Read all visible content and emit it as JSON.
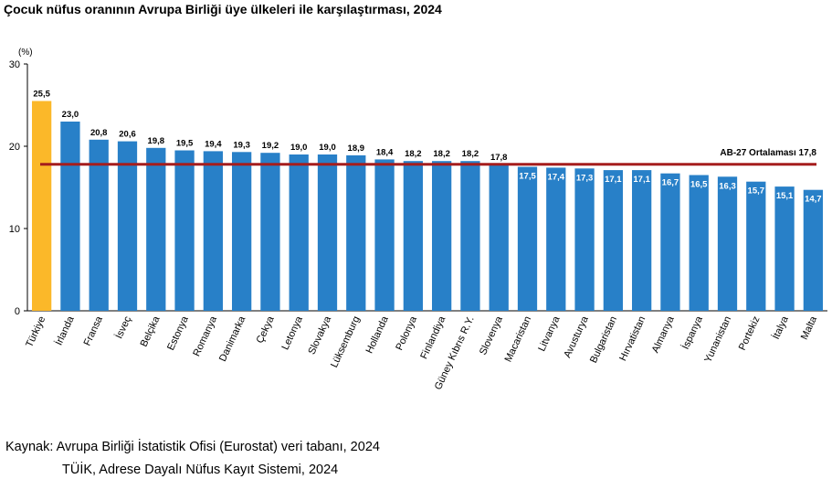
{
  "chart_data": {
    "type": "bar",
    "title": "Çocuk nüfus oranının Avrupa Birliği üye ülkeleri ile karşılaştırması, 2024",
    "ylabel": "(%)",
    "xlabel": "",
    "ylim": [
      0,
      30
    ],
    "yticks": [
      "0",
      "10",
      "20",
      "30"
    ],
    "grid": false,
    "categories": [
      "Türkiye",
      "İrlanda",
      "Fransa",
      "İsveç",
      "Belçika",
      "Estonya",
      "Romanya",
      "Danimarka",
      "Çekya",
      "Letonya",
      "Slovakya",
      "Lüksemburg",
      "Hollanda",
      "Polonya",
      "Finlandiya",
      "Güney Kıbrıs R.Y.",
      "Slovenya",
      "Macaristan",
      "Litvanya",
      "Avusturya",
      "Bulgaristan",
      "Hırvatistan",
      "Almanya",
      "İspanya",
      "Yunanistan",
      "Portekiz",
      "İtalya",
      "Malta"
    ],
    "values": [
      25.5,
      23.0,
      20.8,
      20.6,
      19.8,
      19.5,
      19.4,
      19.3,
      19.2,
      19.0,
      19.0,
      18.9,
      18.4,
      18.2,
      18.2,
      18.2,
      17.8,
      17.5,
      17.4,
      17.3,
      17.1,
      17.1,
      16.7,
      16.5,
      16.3,
      15.7,
      15.1,
      14.7
    ],
    "value_labels": [
      "25,5",
      "23,0",
      "20,8",
      "20,6",
      "19,8",
      "19,5",
      "19,4",
      "19,3",
      "19,2",
      "19,0",
      "19,0",
      "18,9",
      "18,4",
      "18,2",
      "18,2",
      "18,2",
      "17,8",
      "17,5",
      "17,4",
      "17,3",
      "17,1",
      "17,1",
      "16,7",
      "16,5",
      "16,3",
      "15,7",
      "15,1",
      "14,7"
    ],
    "highlight_index": 0,
    "colors": {
      "bar": "#2880c8",
      "highlight": "#fbb829",
      "average_line": "#a51d1d",
      "axis": "#000000"
    },
    "reference_line": {
      "value": 17.8,
      "label": "AB-27 Ortalaması 17,8"
    }
  },
  "source": {
    "line1": "Kaynak: Avrupa Birliği İstatistik Ofisi (Eurostat) veri tabanı, 2024",
    "line2": "TÜİK, Adrese Dayalı Nüfus Kayıt Sistemi, 2024"
  }
}
